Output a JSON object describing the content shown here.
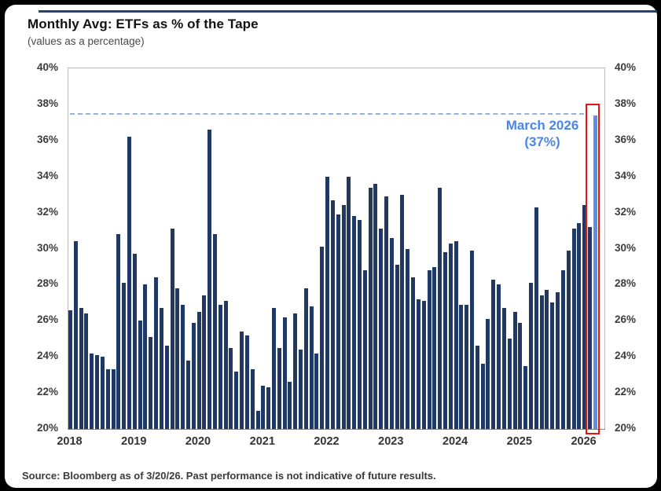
{
  "card": {
    "title": "Monthly Avg: ETFs as % of the Tape",
    "subtitle": "(values as a percentage)"
  },
  "annotation": {
    "line1": "March 2026",
    "line2": "(37%)"
  },
  "source_note": "Source: Bloomberg as of 3/20/26. Past performance is not indicative of future results.",
  "colors": {
    "bar": "#1F3864",
    "highlight_bar": "#5C8EE6",
    "highlight_box": "#EE1111",
    "reference_line": "#95B3D7",
    "annotation_text": "#4A86E8",
    "top_rule": "#24426E"
  },
  "chart_data": {
    "type": "bar",
    "title": "Monthly Avg: ETFs as % of the Tape",
    "subtitle": "(values as a percentage)",
    "xlabel": "",
    "ylabel": "ETFs as % of tape",
    "frequency": "monthly",
    "start": "Jan 2018",
    "end": "Mar 2026",
    "ylim": [
      20,
      40
    ],
    "grid": false,
    "ytick_labels": [
      "40%",
      "38%",
      "36%",
      "34%",
      "32%",
      "30%",
      "28%",
      "26%",
      "24%",
      "22%",
      "20%"
    ],
    "year_labels": [
      "2018",
      "2019",
      "2020",
      "2021",
      "2022",
      "2023",
      "2024",
      "2025",
      "2026"
    ],
    "values": [
      26.6,
      30.4,
      26.7,
      26.4,
      24.2,
      24.1,
      24.0,
      23.3,
      23.3,
      30.8,
      28.1,
      36.2,
      29.7,
      26.0,
      28.0,
      25.1,
      28.4,
      26.7,
      24.6,
      31.1,
      27.8,
      26.9,
      23.8,
      25.9,
      26.5,
      27.4,
      36.6,
      30.8,
      26.9,
      27.1,
      24.5,
      23.2,
      25.4,
      25.2,
      23.3,
      21.0,
      22.4,
      22.3,
      26.7,
      24.5,
      26.2,
      22.6,
      26.4,
      24.4,
      27.8,
      26.8,
      24.2,
      30.1,
      34.0,
      32.7,
      31.9,
      32.4,
      34.0,
      31.8,
      31.6,
      28.8,
      33.4,
      33.6,
      31.1,
      32.9,
      30.6,
      29.1,
      33.0,
      30.0,
      28.4,
      27.2,
      27.1,
      28.8,
      29.0,
      33.4,
      29.8,
      30.3,
      30.4,
      26.9,
      26.9,
      29.9,
      24.6,
      23.6,
      26.1,
      28.3,
      28.0,
      26.7,
      25.0,
      26.5,
      25.9,
      23.5,
      28.1,
      32.3,
      27.4,
      27.7,
      27.0,
      27.6,
      28.8,
      29.9,
      31.1,
      31.4,
      32.4,
      31.2,
      37.4
    ],
    "highlight": {
      "index": 98,
      "month": "March 2026",
      "value": 37.4,
      "label": "March 2026 (37%)"
    },
    "reference_line": {
      "value": 37.5,
      "style": "dashed"
    }
  }
}
